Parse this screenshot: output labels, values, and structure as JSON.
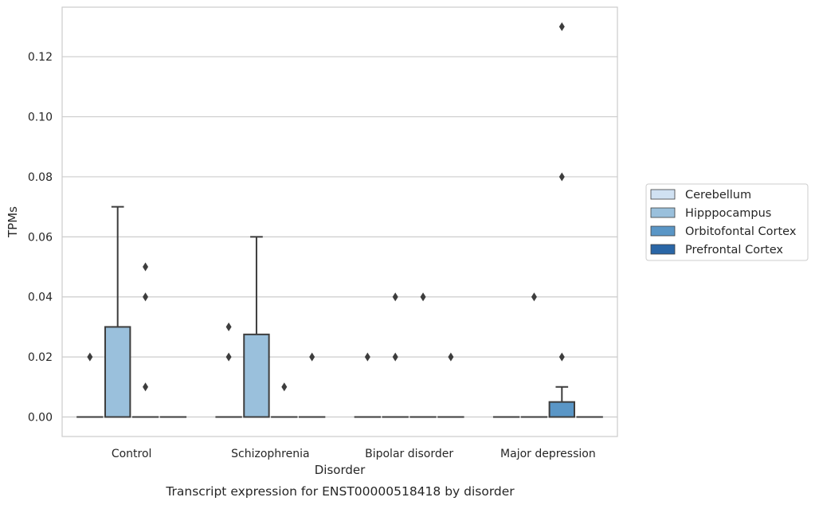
{
  "chart_data": {
    "type": "box",
    "caption": "Transcript expression for ENST00000518418 by disorder",
    "xlabel": "Disorder",
    "ylabel": "TPMs",
    "ylim": [
      -0.0065,
      0.1365
    ],
    "yticks": [
      0.0,
      0.02,
      0.04,
      0.06,
      0.08,
      0.1,
      0.12
    ],
    "ytick_labels": [
      "0.00",
      "0.02",
      "0.04",
      "0.06",
      "0.08",
      "0.10",
      "0.12"
    ],
    "grid": "horizontal",
    "legend_position": "right",
    "categories": [
      "Control",
      "Schizophrenia",
      "Bipolar disorder",
      "Major depression"
    ],
    "series": [
      {
        "name": "Cerebellum",
        "color": "#d0e1f2",
        "boxes": [
          {
            "category": "Control",
            "min": 0,
            "q1": 0,
            "median": 0,
            "q3": 0,
            "max": 0,
            "outliers": [
              0.02
            ]
          },
          {
            "category": "Schizophrenia",
            "min": 0,
            "q1": 0,
            "median": 0,
            "q3": 0,
            "max": 0,
            "outliers": [
              0.02,
              0.03
            ]
          },
          {
            "category": "Bipolar disorder",
            "min": 0,
            "q1": 0,
            "median": 0,
            "q3": 0,
            "max": 0,
            "outliers": [
              0.02
            ]
          },
          {
            "category": "Major depression",
            "min": 0,
            "q1": 0,
            "median": 0,
            "q3": 0,
            "max": 0,
            "outliers": []
          }
        ]
      },
      {
        "name": "Hipppocampus",
        "color": "#9ac0dc",
        "boxes": [
          {
            "category": "Control",
            "min": 0,
            "q1": 0,
            "median": 0,
            "q3": 0.03,
            "max": 0.07,
            "outliers": []
          },
          {
            "category": "Schizophrenia",
            "min": 0,
            "q1": 0,
            "median": 0,
            "q3": 0.0275,
            "max": 0.06,
            "outliers": []
          },
          {
            "category": "Bipolar disorder",
            "min": 0,
            "q1": 0,
            "median": 0,
            "q3": 0,
            "max": 0,
            "outliers": [
              0.02,
              0.04
            ]
          },
          {
            "category": "Major depression",
            "min": 0,
            "q1": 0,
            "median": 0,
            "q3": 0,
            "max": 0,
            "outliers": [
              0.04
            ]
          }
        ]
      },
      {
        "name": "Orbitofontal Cortex",
        "color": "#5a96c6",
        "boxes": [
          {
            "category": "Control",
            "min": 0,
            "q1": 0,
            "median": 0,
            "q3": 0,
            "max": 0,
            "outliers": [
              0.01,
              0.04,
              0.05
            ]
          },
          {
            "category": "Schizophrenia",
            "min": 0,
            "q1": 0,
            "median": 0,
            "q3": 0,
            "max": 0,
            "outliers": [
              0.01
            ]
          },
          {
            "category": "Bipolar disorder",
            "min": 0,
            "q1": 0,
            "median": 0,
            "q3": 0,
            "max": 0,
            "outliers": [
              0.04
            ]
          },
          {
            "category": "Major depression",
            "min": 0,
            "q1": 0,
            "median": 0,
            "q3": 0.005,
            "max": 0.01,
            "outliers": [
              0.02,
              0.08,
              0.13
            ]
          }
        ]
      },
      {
        "name": "Prefrontal Cortex",
        "color": "#2a66a6",
        "boxes": [
          {
            "category": "Control",
            "min": 0,
            "q1": 0,
            "median": 0,
            "q3": 0,
            "max": 0,
            "outliers": []
          },
          {
            "category": "Schizophrenia",
            "min": 0,
            "q1": 0,
            "median": 0,
            "q3": 0,
            "max": 0,
            "outliers": [
              0.02
            ]
          },
          {
            "category": "Bipolar disorder",
            "min": 0,
            "q1": 0,
            "median": 0,
            "q3": 0,
            "max": 0,
            "outliers": [
              0.02
            ]
          },
          {
            "category": "Major depression",
            "min": 0,
            "q1": 0,
            "median": 0,
            "q3": 0,
            "max": 0,
            "outliers": []
          }
        ]
      }
    ]
  }
}
